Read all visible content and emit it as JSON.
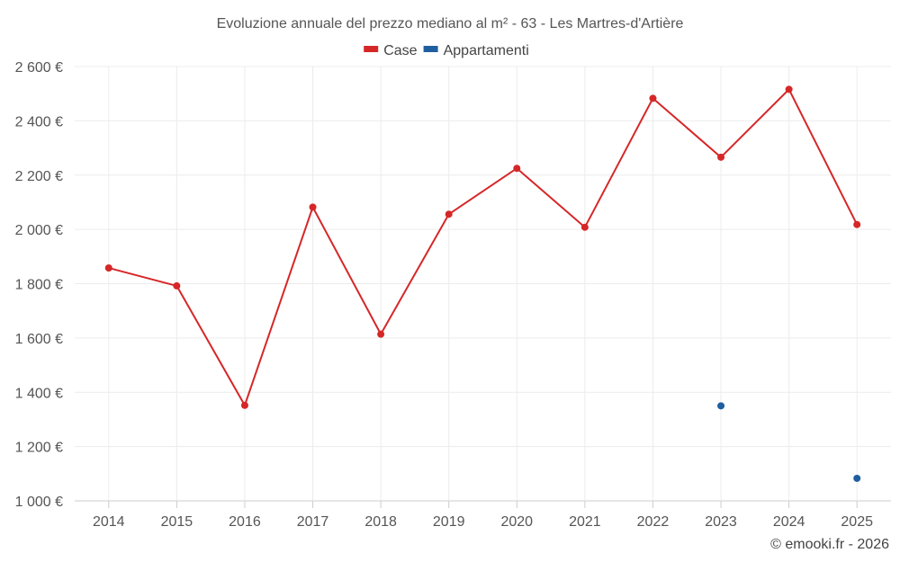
{
  "chart_data": {
    "type": "line",
    "title": "Evoluzione annuale del prezzo mediano al m² - 63 - Les Martres-d'Artière",
    "categories": [
      "2014",
      "2015",
      "2016",
      "2017",
      "2018",
      "2019",
      "2020",
      "2021",
      "2022",
      "2023",
      "2024",
      "2025"
    ],
    "ylim": [
      1000,
      2600
    ],
    "yticks": [
      1000,
      1200,
      1400,
      1600,
      1800,
      2000,
      2200,
      2400,
      2600
    ],
    "ytick_labels": [
      "1 000 €",
      "1 200 €",
      "1 400 €",
      "1 600 €",
      "1 800 €",
      "2 000 €",
      "2 200 €",
      "2 400 €",
      "2 600 €"
    ],
    "grid": true,
    "legend_position": "top-center",
    "series": [
      {
        "name": "Case",
        "color": "#d62728",
        "style": "line-markers",
        "values": [
          1858,
          1792,
          1352,
          2082,
          1614,
          2056,
          2225,
          2008,
          2483,
          2266,
          2516,
          2018
        ]
      },
      {
        "name": "Appartamenti",
        "color": "#1f5fa0",
        "style": "markers",
        "values": [
          null,
          null,
          null,
          null,
          null,
          null,
          null,
          null,
          null,
          1350,
          null,
          1083
        ]
      }
    ],
    "credit": "© emooki.fr - 2026"
  }
}
